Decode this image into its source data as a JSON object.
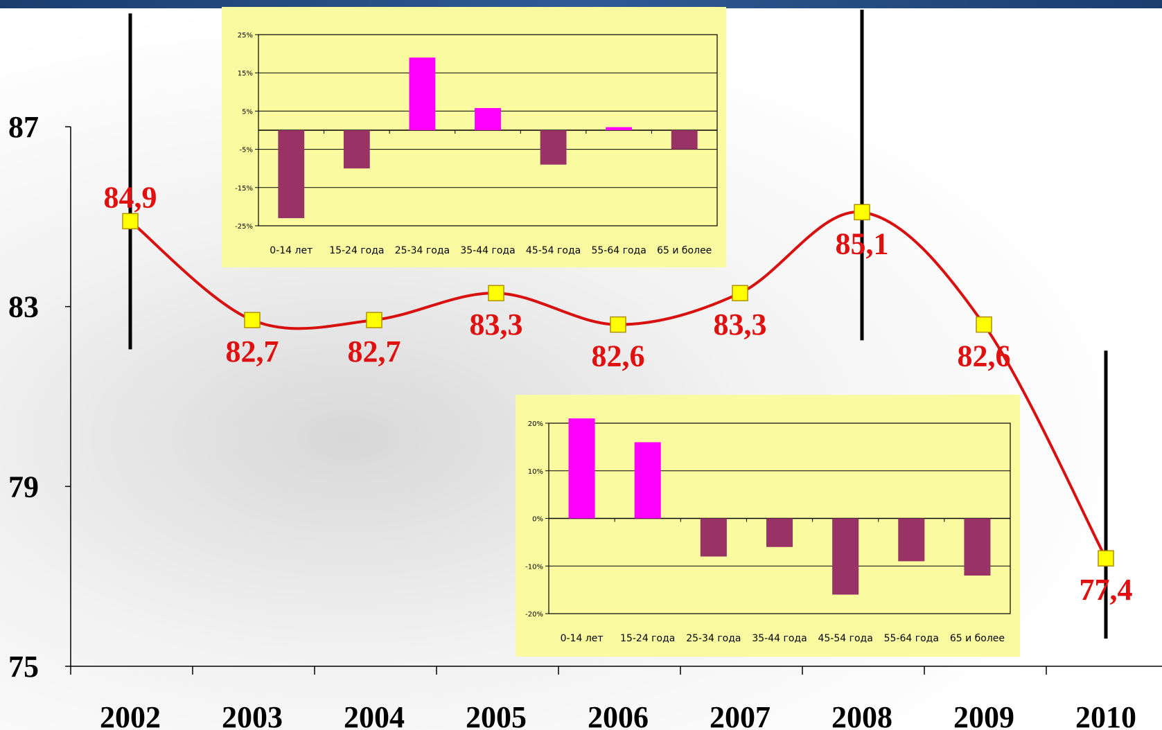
{
  "chart_data": [
    {
      "type": "line",
      "categories": [
        "2002",
        "2003",
        "2004",
        "2005",
        "2006",
        "2007",
        "2008",
        "2009",
        "2010"
      ],
      "values": [
        84.9,
        82.7,
        82.7,
        83.3,
        82.6,
        83.3,
        85.1,
        82.6,
        77.4
      ],
      "data_labels": [
        "84,9",
        "82,7",
        "82,7",
        "83,3",
        "82,6",
        "83,3",
        "85,1",
        "82,6",
        "77,4"
      ],
      "ylim": [
        75,
        87
      ],
      "yticks": [
        75,
        79,
        83,
        87
      ],
      "ytick_labels": [
        "75",
        "79",
        "83",
        "87"
      ],
      "line_color": "#d81010",
      "marker_color": "#ffff00",
      "label_color": "#e01010",
      "marker_labels": [
        "",
        "",
        "",
        "",
        "",
        "",
        "",
        "",
        ""
      ],
      "highlighted_years": [
        "2002",
        "2008",
        "2010"
      ],
      "grid": false
    },
    {
      "type": "bar",
      "categories": [
        "0-14 лет",
        "15-24 года",
        "25-34 года",
        "35-44 года",
        "45-54 года",
        "55-64 года",
        "65 и более"
      ],
      "values": [
        -23,
        -10,
        19,
        5.8,
        -9,
        0.8,
        -5
      ],
      "ylim": [
        -25,
        25
      ],
      "yticks": [
        -25,
        -15,
        -5,
        5,
        15,
        25
      ],
      "ytick_labels": [
        "-25%",
        "-15%",
        "-5%",
        "5%",
        "15%",
        "25%"
      ],
      "positive_color": "#ff00ff",
      "negative_color": "#993366",
      "background": "#fafaa0",
      "grid": true
    },
    {
      "type": "bar",
      "categories": [
        "0-14 лет",
        "15-24 года",
        "25-34 года",
        "35-44 года",
        "45-54 года",
        "55-64 года",
        "65 и более"
      ],
      "values": [
        21,
        16,
        -8,
        -6,
        -16,
        -9,
        -12
      ],
      "ylim": [
        -20,
        20
      ],
      "yticks": [
        -20,
        -10,
        0,
        10,
        20
      ],
      "ytick_labels": [
        "-20%",
        "-10%",
        "0%",
        "10%",
        "20%"
      ],
      "positive_color": "#ff00ff",
      "negative_color": "#993366",
      "background": "#fafaa0",
      "grid": true
    }
  ]
}
